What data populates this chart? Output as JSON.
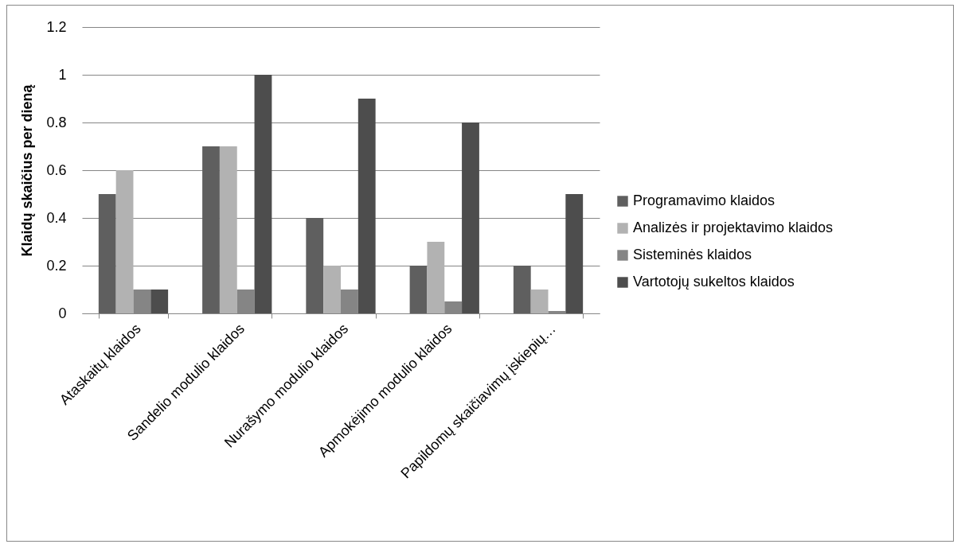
{
  "chart_data": {
    "type": "bar",
    "ylabel": "Klaidų skaičius per dieną",
    "categories": [
      "Ataskaitų klaidos",
      "Sandelio modulio klaidos",
      "Nurašymo modulio klaidos",
      "Apmokėjimo modulio klaidos",
      "Papildomų skaičiavimų įskiepių…"
    ],
    "series": [
      {
        "name": "Programavimo klaidos",
        "color": "#5f5f5f",
        "values": [
          0.5,
          0.7,
          0.4,
          0.2,
          0.2
        ]
      },
      {
        "name": "Analizės ir projektavimo klaidos",
        "color": "#b2b2b2",
        "values": [
          0.6,
          0.7,
          0.2,
          0.3,
          0.1
        ]
      },
      {
        "name": "Sisteminės klaidos",
        "color": "#858585",
        "values": [
          0.1,
          0.1,
          0.1,
          0.05,
          0.01
        ]
      },
      {
        "name": "Vartotojų sukeltos klaidos",
        "color": "#4d4d4d",
        "values": [
          0.1,
          1,
          0.9,
          0.8,
          0.5
        ]
      }
    ],
    "ylim": [
      0,
      1.2
    ],
    "yticks": [
      0,
      0.2,
      0.4,
      0.6,
      0.8,
      1,
      1.2
    ],
    "grid": "y",
    "legend": "right"
  }
}
